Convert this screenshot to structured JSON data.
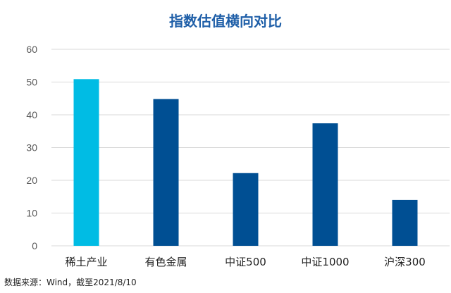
{
  "chart_data": {
    "type": "bar",
    "title": "指数估值横向对比",
    "categories": [
      "稀土产业",
      "有色金属",
      "中证500",
      "中证1000",
      "沪深300"
    ],
    "values": [
      50.9,
      44.8,
      22.2,
      37.4,
      14.0
    ],
    "colors": [
      "#00bce4",
      "#004f93",
      "#004f93",
      "#004f93",
      "#004f93"
    ],
    "ylim": [
      0,
      60
    ],
    "yticks": [
      "0",
      "10",
      "20",
      "30",
      "40",
      "50",
      "60"
    ],
    "grid": true,
    "xlabel": "",
    "ylabel": ""
  },
  "source": "数据来源：Wind，截至2021/8/10"
}
